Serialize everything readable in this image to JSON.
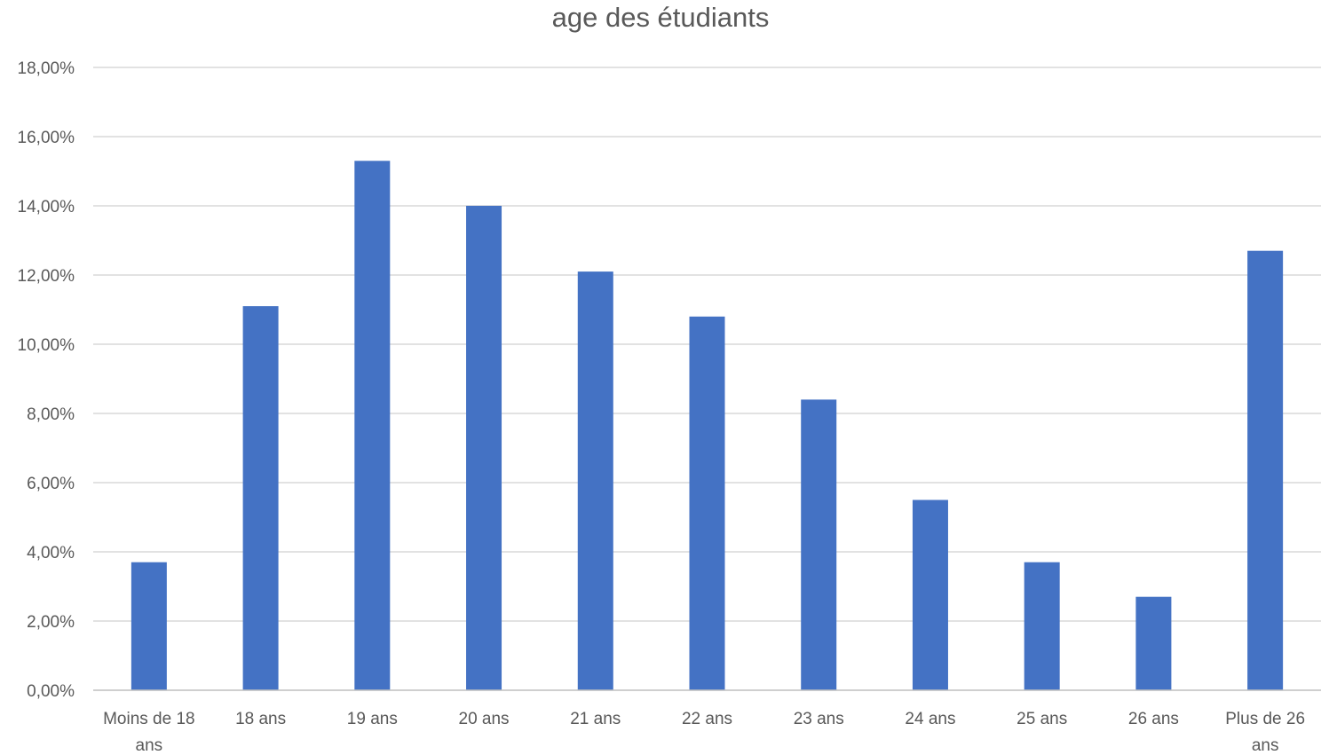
{
  "chart_data": {
    "type": "bar",
    "title": "age des étudiants",
    "xlabel": "",
    "ylabel": "",
    "categories": [
      "Moins de 18 ans",
      "18 ans",
      "19 ans",
      "20 ans",
      "21 ans",
      "22 ans",
      "23 ans",
      "24 ans",
      "25 ans",
      "26 ans",
      "Plus de 26 ans"
    ],
    "category_label_lines": [
      [
        "Moins de 18",
        "ans"
      ],
      [
        "18 ans"
      ],
      [
        "19 ans"
      ],
      [
        "20 ans"
      ],
      [
        "21 ans"
      ],
      [
        "22 ans"
      ],
      [
        "23 ans"
      ],
      [
        "24 ans"
      ],
      [
        "25 ans"
      ],
      [
        "26 ans"
      ],
      [
        "Plus de 26",
        "ans"
      ]
    ],
    "values": [
      3.7,
      11.1,
      15.3,
      14.0,
      12.1,
      10.8,
      8.4,
      5.5,
      3.7,
      2.7,
      12.7
    ],
    "ylim": [
      0,
      18
    ],
    "yticks": [
      0,
      2,
      4,
      6,
      8,
      10,
      12,
      14,
      16,
      18
    ],
    "ytick_labels": [
      "0,00%",
      "2,00%",
      "4,00%",
      "6,00%",
      "8,00%",
      "10,00%",
      "12,00%",
      "14,00%",
      "16,00%",
      "18,00%"
    ],
    "grid": true,
    "legend": "none",
    "colors": {
      "bar": "#4472C4",
      "grid": "#D9D9D9",
      "axis": "#BFBFBF",
      "text": "#595959"
    }
  }
}
